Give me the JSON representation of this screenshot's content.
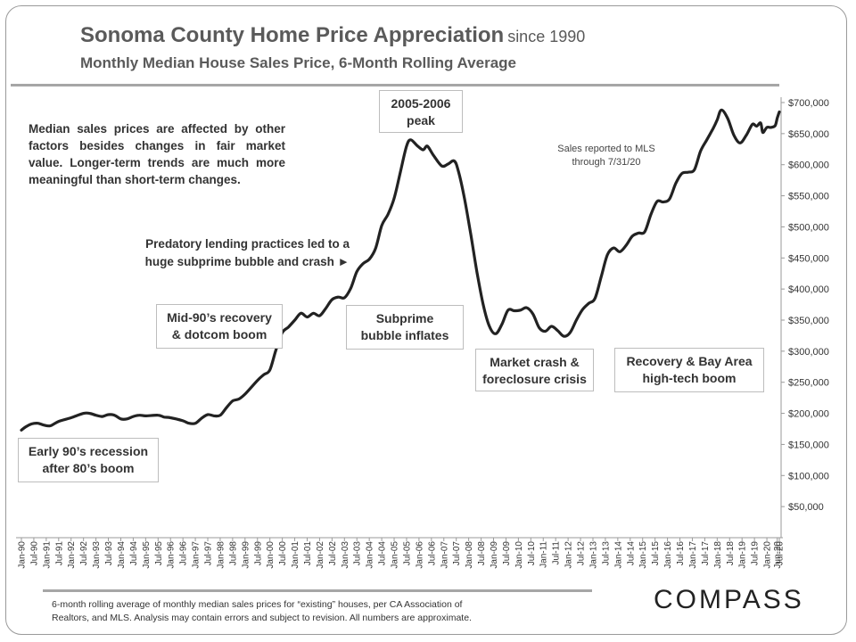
{
  "title": {
    "main": "Sonoma County Home Price Appreciation",
    "since": "since 1990",
    "subtitle": "Monthly Median House Sales Price, 6-Month Rolling Average"
  },
  "notes": {
    "median_lines": [
      "Median sales prices are affected by other",
      "factors besides changes in fair market",
      "value. Longer-term trends are much more",
      "meaningful than short-term changes."
    ],
    "predatory_lines": [
      "Predatory lending practices led to a",
      "huge subprime bubble and crash ►"
    ],
    "mls_lines": [
      "Sales reported to MLS",
      "through 7/31/20"
    ]
  },
  "boxes": {
    "peak": [
      "2005-2006",
      "peak"
    ],
    "early90s": [
      "Early 90’s recession",
      "after 80’s boom"
    ],
    "mid90s": [
      "Mid-90’s recovery",
      "& dotcom boom"
    ],
    "subprime": [
      "Subprime",
      "bubble inflates"
    ],
    "crash": [
      "Market crash &",
      "foreclosure crisis"
    ],
    "recovery": [
      "Recovery & Bay Area",
      "high-tech boom"
    ]
  },
  "footer": {
    "lines": [
      "6-month rolling average of monthly median sales prices for “existing” houses, per CA Association of",
      "Realtors, and MLS.  Analysis may contain errors and subject to revision. All numbers are approximate."
    ]
  },
  "brand": "COMPASS",
  "chart_data": {
    "type": "line",
    "title": "Sonoma County Home Price Appreciation since 1990",
    "subtitle": "Monthly Median House Sales Price, 6-Month Rolling Average",
    "line_color": "#222222",
    "ylim": [
      0,
      710000
    ],
    "y_ticks": [
      50000,
      100000,
      150000,
      200000,
      250000,
      300000,
      350000,
      400000,
      450000,
      500000,
      550000,
      600000,
      650000,
      700000
    ],
    "y_tick_labels": [
      "$50,000",
      "$100,000",
      "$150,000",
      "$200,000",
      "$250,000",
      "$300,000",
      "$350,000",
      "$400,000",
      "$450,000",
      "$500,000",
      "$550,000",
      "$600,000",
      "$650,000",
      "$700,000"
    ],
    "x_tick_labels": [
      "Jan-90",
      "Jul-90",
      "Jan-91",
      "Jul-91",
      "Jan-92",
      "Jul-92",
      "Jan-93",
      "Jul-93",
      "Jan-94",
      "Jul-94",
      "Jan-95",
      "Jul-95",
      "Jan-96",
      "Jul-96",
      "Jan-97",
      "Jul-97",
      "Jan-98",
      "Jul-98",
      "Jan-99",
      "Jul-99",
      "Jan-00",
      "Jul-00",
      "Jan-01",
      "Jul-01",
      "Jan-02",
      "Jul-02",
      "Jan-03",
      "Jul-03",
      "Jan-04",
      "Jul-04",
      "Jan-05",
      "Jul-05",
      "Jan-06",
      "Jul-06",
      "Jan-07",
      "Jul-07",
      "Jan-08",
      "Jul-08",
      "Jan-09",
      "Jul-09",
      "Jan-10",
      "Jul-10",
      "Jan-11",
      "Jul-11",
      "Jan-12",
      "Jul-12",
      "Jan-13",
      "Jul-13",
      "Jan-14",
      "Jul-14",
      "Jan-15",
      "Jul-15",
      "Jan-16",
      "Jul-16",
      "Jan-17",
      "Jul-17",
      "Jan-18",
      "Jul-18",
      "Jan-19",
      "Jul-19",
      "Jan-20",
      "Jun-20",
      "Jul-20"
    ],
    "series": [
      {
        "points": [
          [
            "Jan-90",
            173000
          ],
          [
            "Mar-90",
            178000
          ],
          [
            "Jun-90",
            183000
          ],
          [
            "Sep-90",
            184000
          ],
          [
            "Dec-90",
            181000
          ],
          [
            "Mar-91",
            180000
          ],
          [
            "Jul-91",
            187000
          ],
          [
            "Jan-92",
            193000
          ],
          [
            "Jul-92",
            200000
          ],
          [
            "Oct-92",
            200000
          ],
          [
            "Jan-93",
            197000
          ],
          [
            "Apr-93",
            195000
          ],
          [
            "Jul-93",
            198000
          ],
          [
            "Oct-93",
            197000
          ],
          [
            "Jan-94",
            191000
          ],
          [
            "Apr-94",
            191000
          ],
          [
            "Jul-94",
            195000
          ],
          [
            "Oct-94",
            197000
          ],
          [
            "Jan-95",
            196000
          ],
          [
            "Jul-95",
            197000
          ],
          [
            "Oct-95",
            194000
          ],
          [
            "Jan-96",
            193000
          ],
          [
            "Jul-96",
            188000
          ],
          [
            "Oct-96",
            184000
          ],
          [
            "Jan-97",
            184000
          ],
          [
            "Apr-97",
            192000
          ],
          [
            "Jul-97",
            198000
          ],
          [
            "Oct-97",
            196000
          ],
          [
            "Jan-98",
            197000
          ],
          [
            "Apr-98",
            209000
          ],
          [
            "Jul-98",
            220000
          ],
          [
            "Oct-98",
            223000
          ],
          [
            "Jan-99",
            231000
          ],
          [
            "Jul-99",
            253000
          ],
          [
            "Oct-99",
            262000
          ],
          [
            "Jan-00",
            270000
          ],
          [
            "Apr-00",
            303000
          ],
          [
            "Jul-00",
            330000
          ],
          [
            "Oct-00",
            339000
          ],
          [
            "Jan-01",
            350000
          ],
          [
            "Apr-01",
            361000
          ],
          [
            "Jul-01",
            355000
          ],
          [
            "Oct-01",
            361000
          ],
          [
            "Jan-02",
            357000
          ],
          [
            "Apr-02",
            369000
          ],
          [
            "Jul-02",
            383000
          ],
          [
            "Oct-02",
            387000
          ],
          [
            "Jan-03",
            386000
          ],
          [
            "Apr-03",
            401000
          ],
          [
            "Jul-03",
            428000
          ],
          [
            "Oct-03",
            441000
          ],
          [
            "Jan-04",
            448000
          ],
          [
            "Apr-04",
            465000
          ],
          [
            "Jul-04",
            502000
          ],
          [
            "Oct-04",
            520000
          ],
          [
            "Jan-05",
            546000
          ],
          [
            "Apr-05",
            588000
          ],
          [
            "Jul-05",
            630000
          ],
          [
            "Sep-05",
            640000
          ],
          [
            "Dec-05",
            631000
          ],
          [
            "Mar-06",
            624000
          ],
          [
            "May-06",
            630000
          ],
          [
            "Aug-06",
            615000
          ],
          [
            "Dec-06",
            598000
          ],
          [
            "Mar-07",
            601000
          ],
          [
            "Jun-07",
            606000
          ],
          [
            "Aug-07",
            590000
          ],
          [
            "Nov-07",
            545000
          ],
          [
            "Feb-08",
            488000
          ],
          [
            "May-08",
            427000
          ],
          [
            "Aug-08",
            375000
          ],
          [
            "Nov-08",
            340000
          ],
          [
            "Feb-09",
            328000
          ],
          [
            "May-09",
            343000
          ],
          [
            "Aug-09",
            366000
          ],
          [
            "Nov-09",
            365000
          ],
          [
            "Feb-10",
            366000
          ],
          [
            "May-10",
            370000
          ],
          [
            "Aug-10",
            360000
          ],
          [
            "Nov-10",
            338000
          ],
          [
            "Feb-11",
            332000
          ],
          [
            "May-11",
            340000
          ],
          [
            "Aug-11",
            333000
          ],
          [
            "Nov-11",
            324000
          ],
          [
            "Feb-12",
            330000
          ],
          [
            "May-12",
            350000
          ],
          [
            "Aug-12",
            367000
          ],
          [
            "Nov-12",
            377000
          ],
          [
            "Feb-13",
            385000
          ],
          [
            "May-13",
            420000
          ],
          [
            "Aug-13",
            455000
          ],
          [
            "Nov-13",
            466000
          ],
          [
            "Feb-14",
            460000
          ],
          [
            "May-14",
            470000
          ],
          [
            "Aug-14",
            485000
          ],
          [
            "Nov-14",
            490000
          ],
          [
            "Feb-15",
            492000
          ],
          [
            "May-15",
            520000
          ],
          [
            "Aug-15",
            541000
          ],
          [
            "Nov-15",
            540000
          ],
          [
            "Feb-16",
            545000
          ],
          [
            "May-16",
            570000
          ],
          [
            "Aug-16",
            586000
          ],
          [
            "Nov-16",
            588000
          ],
          [
            "Feb-17",
            592000
          ],
          [
            "May-17",
            622000
          ],
          [
            "Aug-17",
            640000
          ],
          [
            "Nov-17",
            658000
          ],
          [
            "Jan-18",
            672000
          ],
          [
            "Mar-18",
            688000
          ],
          [
            "Jun-18",
            675000
          ],
          [
            "Sep-18",
            648000
          ],
          [
            "Dec-18",
            635000
          ],
          [
            "Mar-19",
            647000
          ],
          [
            "Jun-19",
            665000
          ],
          [
            "Aug-19",
            662000
          ],
          [
            "Oct-19",
            667000
          ],
          [
            "Nov-19",
            652000
          ],
          [
            "Jan-20",
            660000
          ],
          [
            "Mar-20",
            660000
          ],
          [
            "May-20",
            663000
          ],
          [
            "Jun-20",
            675000
          ],
          [
            "Jul-20",
            685000
          ]
        ]
      }
    ]
  }
}
